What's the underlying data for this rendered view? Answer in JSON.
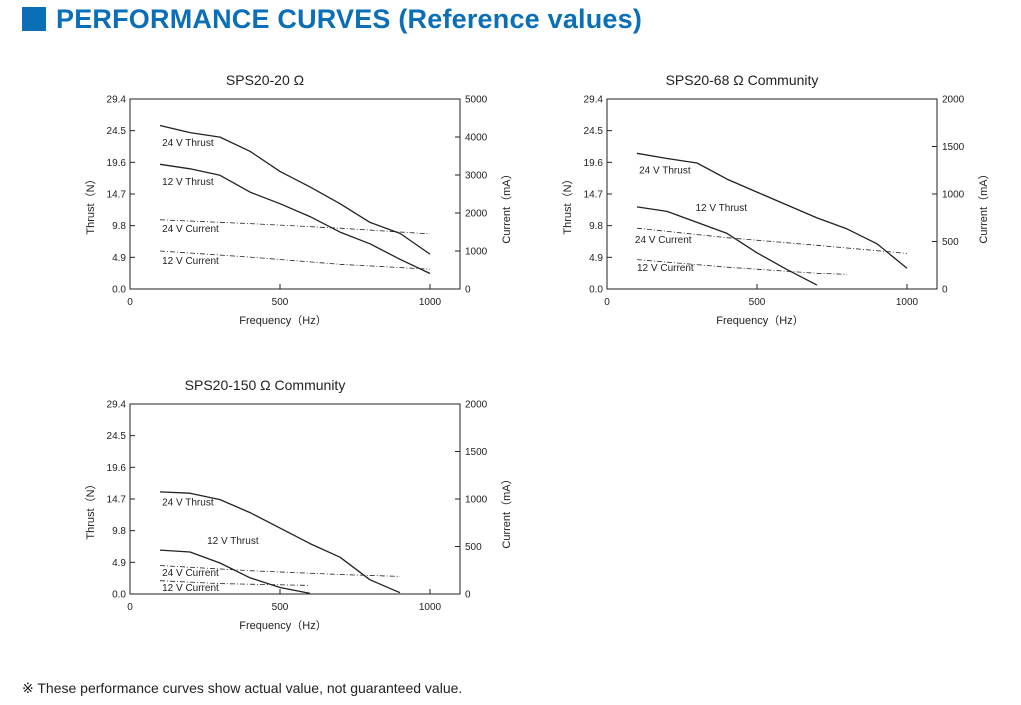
{
  "header": {
    "title": "PERFORMANCE CURVES (Reference values)"
  },
  "footnote": "※ These performance curves show actual value, not guaranteed value.",
  "chart_data": [
    {
      "type": "line",
      "title": "SPS20-20 Ω",
      "xlabel": "Frequency（Hz）",
      "ylabel": "Thrust（N）",
      "y2label": "Current（mA）",
      "xlim": [
        0,
        1100
      ],
      "ylim": [
        0,
        29.4
      ],
      "y2lim": [
        0,
        5000
      ],
      "xticks": [
        "0",
        "500",
        "1000"
      ],
      "yticks": [
        "0.0",
        "4.9",
        "9.8",
        "14.7",
        "19.6",
        "24.5",
        "29.4"
      ],
      "y2ticks": [
        "0",
        "1000",
        "2000",
        "3000",
        "4000",
        "5000"
      ],
      "series": [
        {
          "name": "24 V Thrust",
          "axis": "left",
          "style": "solid",
          "x": [
            100,
            200,
            300,
            400,
            500,
            600,
            700,
            800,
            900,
            1000
          ],
          "y": [
            25.3,
            24.2,
            23.5,
            21.3,
            18.2,
            15.8,
            13.2,
            10.3,
            8.6,
            5.4
          ]
        },
        {
          "name": "12 V Thrust",
          "axis": "left",
          "style": "solid",
          "x": [
            100,
            200,
            300,
            400,
            500,
            600,
            700,
            800,
            900,
            1000
          ],
          "y": [
            19.3,
            18.6,
            17.6,
            15.0,
            13.2,
            11.2,
            8.8,
            7.0,
            4.6,
            2.4
          ]
        },
        {
          "name": "24 V  Current",
          "axis": "right",
          "style": "dashdot",
          "x": [
            100,
            400,
            700,
            1000
          ],
          "y": [
            1820,
            1720,
            1600,
            1450
          ]
        },
        {
          "name": "12 V  Current",
          "axis": "right",
          "style": "dashdot",
          "x": [
            100,
            400,
            700,
            1000
          ],
          "y": [
            1000,
            840,
            650,
            520
          ]
        }
      ],
      "labels": [
        {
          "text": "24 V Thrust",
          "x": 107,
          "y": 22.1
        },
        {
          "text": "12 V Thrust",
          "x": 107,
          "y": 16.1
        },
        {
          "text": "24 V  Current",
          "x": 107,
          "y": 8.8
        },
        {
          "text": "12 V  Current",
          "x": 107,
          "y": 3.9
        }
      ]
    },
    {
      "type": "line",
      "title": "SPS20-68 Ω Community",
      "xlabel": "Frequency（Hz）",
      "ylabel": "Thrust（N）",
      "y2label": "Current（mA）",
      "xlim": [
        0,
        1100
      ],
      "ylim": [
        0,
        29.4
      ],
      "y2lim": [
        0,
        2000
      ],
      "xticks": [
        "0",
        "500",
        "1000"
      ],
      "yticks": [
        "0.0",
        "4.9",
        "9.8",
        "14.7",
        "19.6",
        "24.5",
        "29.4"
      ],
      "y2ticks": [
        "0",
        "500",
        "1000",
        "1500",
        "2000"
      ],
      "series": [
        {
          "name": "24 V Thrust",
          "axis": "left",
          "style": "solid",
          "x": [
            100,
            200,
            300,
            400,
            500,
            600,
            700,
            800,
            900,
            1000
          ],
          "y": [
            21.0,
            20.2,
            19.5,
            17.0,
            15.0,
            13.0,
            11.0,
            9.3,
            7.0,
            3.2
          ]
        },
        {
          "name": "12 V Thrust",
          "axis": "left",
          "style": "solid",
          "x": [
            100,
            200,
            300,
            400,
            500,
            600,
            700
          ],
          "y": [
            12.7,
            12.0,
            10.3,
            8.6,
            5.6,
            3.0,
            0.6
          ]
        },
        {
          "name": "24 V  Current",
          "axis": "right",
          "style": "dashdot",
          "x": [
            100,
            400,
            700,
            1000
          ],
          "y": [
            640,
            540,
            460,
            375
          ]
        },
        {
          "name": "12 V  Current",
          "axis": "right",
          "style": "dashdot",
          "x": [
            100,
            400,
            700,
            800
          ],
          "y": [
            310,
            230,
            165,
            155
          ]
        }
      ],
      "labels": [
        {
          "text": "24 V Thrust",
          "x": 107,
          "y": 17.9
        },
        {
          "text": "12 V Thrust",
          "x": 295,
          "y": 12.1
        },
        {
          "text": "24 V  Current",
          "x": 93,
          "y": 7.1
        },
        {
          "text": "12 V  Current",
          "x": 100,
          "y": 2.8
        }
      ]
    },
    {
      "type": "line",
      "title": "SPS20-150 Ω Community",
      "xlabel": "Frequency（Hz）",
      "ylabel": "Thrust（N）",
      "y2label": "Current（mA）",
      "xlim": [
        0,
        1100
      ],
      "ylim": [
        0,
        29.4
      ],
      "y2lim": [
        0,
        2000
      ],
      "xticks": [
        "0",
        "500",
        "1000"
      ],
      "yticks": [
        "0.0",
        "4.9",
        "9.8",
        "14.7",
        "19.6",
        "24.5",
        "29.4"
      ],
      "y2ticks": [
        "0",
        "500",
        "1000",
        "1500",
        "2000"
      ],
      "series": [
        {
          "name": "24 V Thrust",
          "axis": "left",
          "style": "solid",
          "x": [
            100,
            200,
            300,
            400,
            500,
            600,
            700,
            800,
            900
          ],
          "y": [
            15.8,
            15.6,
            14.6,
            12.6,
            10.2,
            7.8,
            5.7,
            2.2,
            0.2
          ]
        },
        {
          "name": "12 V Thrust",
          "axis": "left",
          "style": "solid",
          "x": [
            100,
            200,
            300,
            400,
            500,
            600
          ],
          "y": [
            6.8,
            6.5,
            4.8,
            2.5,
            1.0,
            0.1
          ]
        },
        {
          "name": "24 V  Current",
          "axis": "right",
          "style": "dashdot",
          "x": [
            100,
            400,
            700,
            900
          ],
          "y": [
            300,
            245,
            205,
            185
          ]
        },
        {
          "name": "12 V  Current",
          "axis": "right",
          "style": "dashdot",
          "x": [
            100,
            300,
            600
          ],
          "y": [
            140,
            110,
            90
          ]
        }
      ],
      "labels": [
        {
          "text": "24 V Thrust",
          "x": 107,
          "y": 13.7
        },
        {
          "text": "12 V Thrust",
          "x": 257,
          "y": 7.7
        },
        {
          "text": "24 V  Current",
          "x": 107,
          "y": 2.8
        },
        {
          "text": "12 V  Current",
          "x": 107,
          "y": 0.5
        }
      ]
    }
  ]
}
